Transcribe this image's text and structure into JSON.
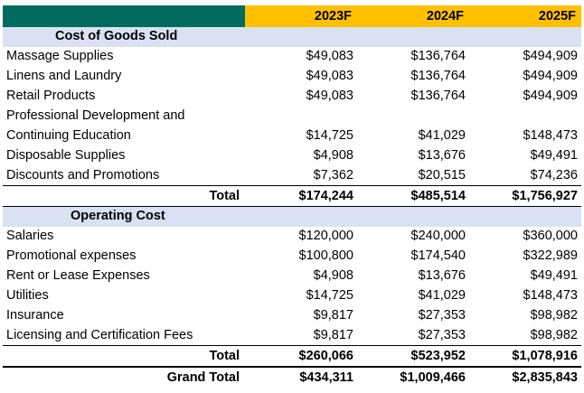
{
  "header": {
    "years": [
      "2023F",
      "2024F",
      "2025F"
    ]
  },
  "cogs": {
    "title": "Cost of Goods Sold",
    "rows": [
      {
        "label": "Massage Supplies",
        "values": [
          "$49,083",
          "$136,764",
          "$494,909"
        ]
      },
      {
        "label": "Linens and Laundry",
        "values": [
          "$49,083",
          "$136,764",
          "$494,909"
        ]
      },
      {
        "label": "Retail Products",
        "values": [
          "$49,083",
          "$136,764",
          "$494,909"
        ]
      },
      {
        "label": "Professional Development and",
        "values": [
          "",
          "",
          ""
        ]
      },
      {
        "label": "Continuing Education",
        "values": [
          "$14,725",
          "$41,029",
          "$148,473"
        ]
      },
      {
        "label": "Disposable Supplies",
        "values": [
          "$4,908",
          "$13,676",
          "$49,491"
        ]
      },
      {
        "label": "Discounts and Promotions",
        "values": [
          "$7,362",
          "$20,515",
          "$74,236"
        ]
      }
    ],
    "total": {
      "label": "Total",
      "values": [
        "$174,244",
        "$485,514",
        "$1,756,927"
      ]
    }
  },
  "opex": {
    "title": "Operating Cost",
    "rows": [
      {
        "label": "Salaries",
        "values": [
          "$120,000",
          "$240,000",
          "$360,000"
        ]
      },
      {
        "label": "Promotional expenses",
        "values": [
          "$100,800",
          "$174,540",
          "$322,989"
        ]
      },
      {
        "label": "Rent or Lease Expenses",
        "values": [
          "$4,908",
          "$13,676",
          "$49,491"
        ]
      },
      {
        "label": "Utilities",
        "values": [
          "$14,725",
          "$41,029",
          "$148,473"
        ]
      },
      {
        "label": "Insurance",
        "values": [
          "$9,817",
          "$27,353",
          "$98,982"
        ]
      },
      {
        "label": "Licensing and Certification Fees",
        "values": [
          "$9,817",
          "$27,353",
          "$98,982"
        ]
      }
    ],
    "total": {
      "label": "Total",
      "values": [
        "$260,066",
        "$523,952",
        "$1,078,916"
      ]
    }
  },
  "grand_total": {
    "label": "Grand Total",
    "values": [
      "$434,311",
      "$1,009,466",
      "$2,835,843"
    ]
  },
  "colors": {
    "corner": "#006b5e",
    "year_header": "#ffc000",
    "section_band": "#d9e1f2"
  }
}
